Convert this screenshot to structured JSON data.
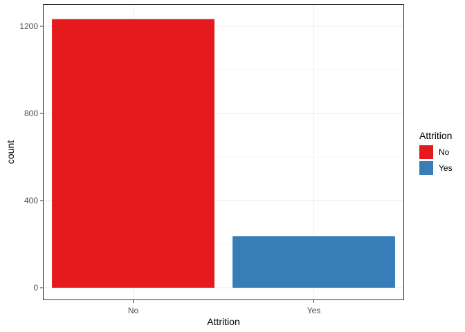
{
  "chart_data": {
    "type": "bar",
    "categories": [
      "No",
      "Yes"
    ],
    "values": [
      1233,
      237
    ],
    "colors": [
      "#E41A1C",
      "#377EB8"
    ],
    "xlabel": "Attrition",
    "ylabel": "count",
    "ylim": [
      0,
      1270
    ],
    "yticks": [
      0,
      400,
      800,
      1200
    ],
    "grid": true,
    "legend": {
      "title": "Attrition",
      "position": "right",
      "entries": [
        {
          "label": "No",
          "color": "#E41A1C"
        },
        {
          "label": "Yes",
          "color": "#377EB8"
        }
      ]
    }
  }
}
